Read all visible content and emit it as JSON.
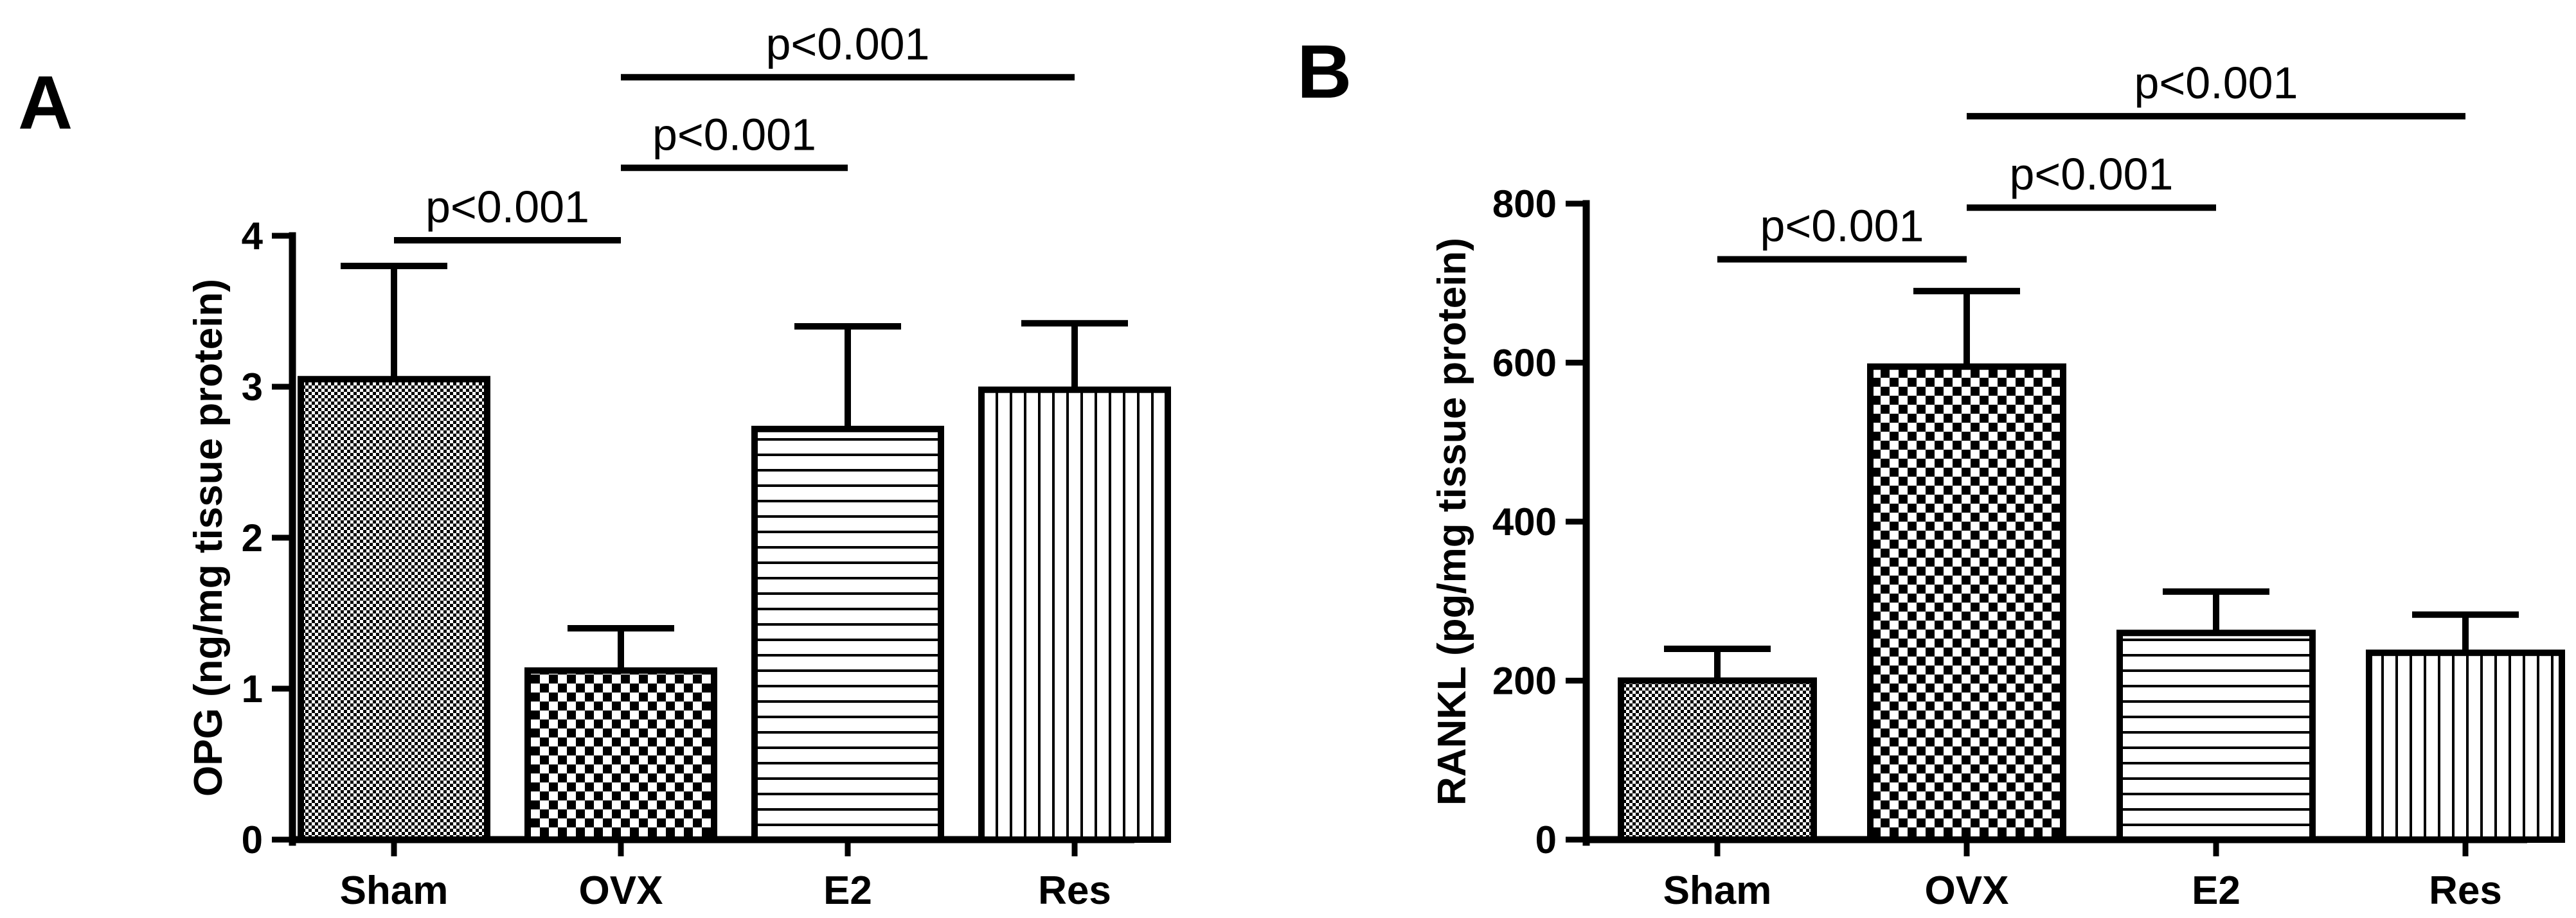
{
  "chart_data": [
    {
      "panel": "A",
      "type": "bar",
      "title": "",
      "xlabel": "",
      "ylabel": "OPG (ng/mg tissue protein)",
      "ylim": [
        0,
        4
      ],
      "yticks": [
        0,
        1,
        2,
        3,
        4
      ],
      "categories": [
        "Sham",
        "OVX",
        "E2",
        "Res"
      ],
      "values": [
        3.05,
        1.12,
        2.72,
        2.98
      ],
      "errors": [
        0.75,
        0.28,
        0.68,
        0.44
      ],
      "patterns": [
        "fine-checker",
        "checker",
        "horizontal-lines",
        "vertical-lines"
      ],
      "significance": [
        {
          "from": "Sham",
          "to": "OVX",
          "label": "p<0.001",
          "y": 3.97
        },
        {
          "from": "OVX",
          "to": "E2",
          "label": "p<0.001",
          "y": 4.45
        },
        {
          "from": "OVX",
          "to": "Res",
          "label": "p<0.001",
          "y": 5.05
        }
      ]
    },
    {
      "panel": "B",
      "type": "bar",
      "title": "",
      "xlabel": "",
      "ylabel": "RANKL (pg/mg tissue protein)",
      "ylim": [
        0,
        800
      ],
      "yticks": [
        0,
        200,
        400,
        600,
        800
      ],
      "categories": [
        "Sham",
        "OVX",
        "E2",
        "Res"
      ],
      "values": [
        200,
        595,
        260,
        235
      ],
      "errors": [
        40,
        95,
        52,
        48
      ],
      "patterns": [
        "fine-checker",
        "checker",
        "horizontal-lines",
        "vertical-lines"
      ],
      "significance": [
        {
          "from": "Sham",
          "to": "OVX",
          "label": "p<0.001",
          "y": 730
        },
        {
          "from": "OVX",
          "to": "E2",
          "label": "p<0.001",
          "y": 795
        },
        {
          "from": "OVX",
          "to": "Res",
          "label": "p<0.001",
          "y": 910
        }
      ]
    }
  ]
}
